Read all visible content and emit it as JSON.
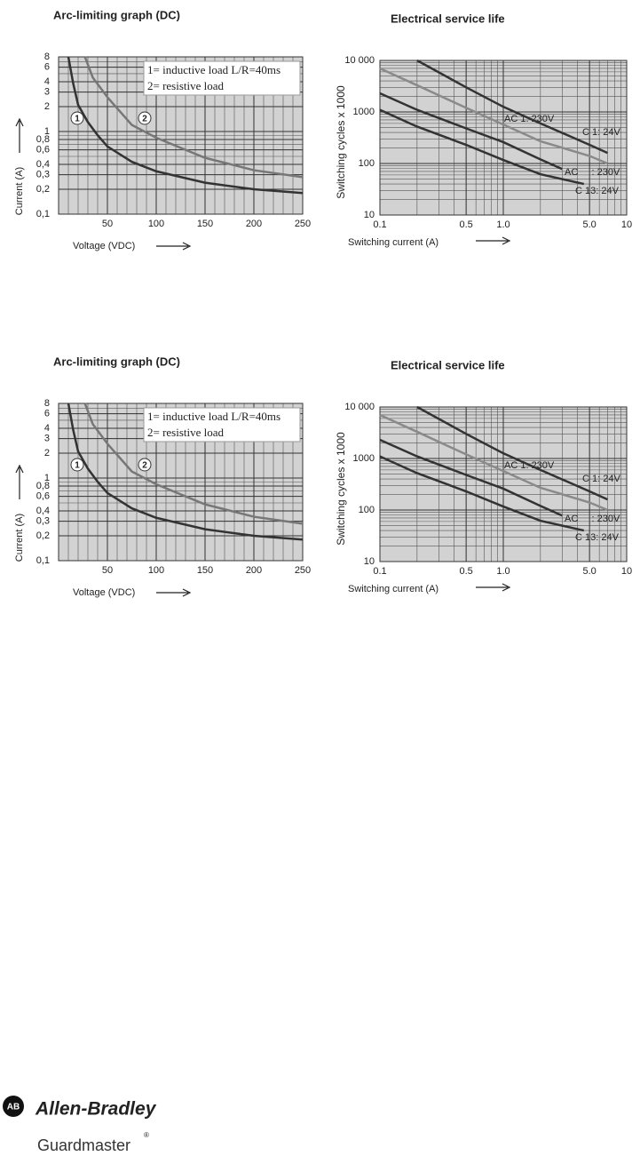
{
  "chart_data": [
    {
      "type": "line",
      "title": "Arc-limiting graph (DC)",
      "xlabel": "Voltage (VDC)",
      "ylabel": "Current (A)",
      "xscale": "linear",
      "yscale": "log",
      "xlim": [
        0,
        250
      ],
      "ylim": [
        0.1,
        8
      ],
      "xticks": [
        50,
        100,
        150,
        200,
        250
      ],
      "yticks": [
        {
          "value": 0.1,
          "label": "0,1"
        },
        {
          "value": 0.2,
          "label": "0,2"
        },
        {
          "value": 0.3,
          "label": "0,3"
        },
        {
          "value": 0.4,
          "label": "0,4"
        },
        {
          "value": 0.6,
          "label": "0,6"
        },
        {
          "value": 0.8,
          "label": "0,8"
        },
        1,
        2,
        3,
        4,
        6,
        8
      ],
      "grid": true,
      "background": "#d2d2d2",
      "annotations": [
        "1= inductive load L/R=40ms",
        "2= resistive load"
      ],
      "series": [
        {
          "name": "1",
          "color": "#333333",
          "x": [
            10,
            15,
            20,
            30,
            40,
            50,
            75,
            100,
            150,
            200,
            250
          ],
          "values": [
            8,
            3.8,
            2.1,
            1.3,
            0.9,
            0.66,
            0.43,
            0.33,
            0.24,
            0.2,
            0.18
          ]
        },
        {
          "name": "2",
          "color": "#777777",
          "x": [
            27,
            35,
            50,
            75,
            100,
            150,
            200,
            250
          ],
          "values": [
            8,
            4.5,
            2.6,
            1.2,
            0.84,
            0.48,
            0.34,
            0.28
          ]
        }
      ]
    },
    {
      "type": "line",
      "title": "Electrical service life",
      "xlabel": "Switching current (A)",
      "ylabel": "Switching cycles x 1000",
      "xscale": "log",
      "yscale": "log",
      "xlim": [
        0.1,
        10
      ],
      "ylim": [
        10,
        10000
      ],
      "xticks": [
        0.1,
        0.5,
        {
          "value": 1,
          "label": "1.0"
        },
        {
          "value": 5,
          "label": "5.0"
        },
        10
      ],
      "yticks": [
        10,
        100,
        1000,
        {
          "value": 10000,
          "label": "10 000"
        }
      ],
      "grid": true,
      "background": "#d2d2d2",
      "series": [
        {
          "name": "AC 1: 230V",
          "color": "#8a8a8a",
          "x": [
            0.1,
            0.2,
            0.5,
            1,
            2,
            5,
            7
          ],
          "values": [
            7000,
            3300,
            1200,
            570,
            270,
            140,
            100
          ]
        },
        {
          "name": "C 1: 24V",
          "color": "#333333",
          "x": [
            0.2,
            0.5,
            1,
            2,
            5,
            7
          ],
          "values": [
            10000,
            3000,
            1260,
            600,
            230,
            160
          ]
        },
        {
          "name": "AC     : 230V",
          "color": "#333333",
          "x": [
            0.1,
            0.2,
            0.5,
            1,
            2,
            3
          ],
          "values": [
            2300,
            1100,
            480,
            260,
            120,
            78
          ]
        },
        {
          "name": "C 13: 24V",
          "color": "#333333",
          "x": [
            0.1,
            0.2,
            0.5,
            1,
            2,
            4.5
          ],
          "values": [
            1100,
            520,
            230,
            117,
            62,
            40
          ]
        }
      ]
    },
    {
      "type": "line",
      "title": "Arc-limiting graph (DC)",
      "xlabel": "Voltage (VDC)",
      "ylabel": "Current (A)",
      "xscale": "linear",
      "yscale": "log",
      "xlim": [
        0,
        250
      ],
      "ylim": [
        0.1,
        8
      ],
      "xticks": [
        50,
        100,
        150,
        200,
        250
      ],
      "yticks": [
        {
          "value": 0.1,
          "label": "0,1"
        },
        {
          "value": 0.2,
          "label": "0,2"
        },
        {
          "value": 0.3,
          "label": "0,3"
        },
        {
          "value": 0.4,
          "label": "0,4"
        },
        {
          "value": 0.6,
          "label": "0,6"
        },
        {
          "value": 0.8,
          "label": "0,8"
        },
        1,
        2,
        3,
        4,
        6,
        8
      ],
      "grid": true,
      "background": "#d2d2d2",
      "annotations": [
        "1= inductive load L/R=40ms",
        "2= resistive load"
      ],
      "series": [
        {
          "name": "1",
          "color": "#333333",
          "x": [
            10,
            15,
            20,
            30,
            40,
            50,
            75,
            100,
            150,
            200,
            250
          ],
          "values": [
            8,
            3.8,
            2.1,
            1.3,
            0.9,
            0.66,
            0.43,
            0.33,
            0.24,
            0.2,
            0.18
          ]
        },
        {
          "name": "2",
          "color": "#777777",
          "x": [
            27,
            35,
            50,
            75,
            100,
            150,
            200,
            250
          ],
          "values": [
            8,
            4.5,
            2.6,
            1.2,
            0.84,
            0.48,
            0.34,
            0.28
          ]
        }
      ]
    },
    {
      "type": "line",
      "title": "Electrical service life",
      "xlabel": "Switching current (A)",
      "ylabel": "Switching cycles x 1000",
      "xscale": "log",
      "yscale": "log",
      "xlim": [
        0.1,
        10
      ],
      "ylim": [
        10,
        10000
      ],
      "xticks": [
        0.1,
        0.5,
        {
          "value": 1,
          "label": "1.0"
        },
        {
          "value": 5,
          "label": "5.0"
        },
        10
      ],
      "yticks": [
        10,
        100,
        1000,
        {
          "value": 10000,
          "label": "10 000"
        }
      ],
      "grid": true,
      "background": "#d2d2d2",
      "series": [
        {
          "name": "AC 1: 230V",
          "color": "#8a8a8a",
          "x": [
            0.1,
            0.2,
            0.5,
            1,
            2,
            5,
            7
          ],
          "values": [
            7000,
            3300,
            1200,
            570,
            270,
            140,
            100
          ]
        },
        {
          "name": "C 1: 24V",
          "color": "#333333",
          "x": [
            0.2,
            0.5,
            1,
            2,
            5,
            7
          ],
          "values": [
            10000,
            3000,
            1260,
            600,
            230,
            160
          ]
        },
        {
          "name": "AC     : 230V",
          "color": "#333333",
          "x": [
            0.1,
            0.2,
            0.5,
            1,
            2,
            3
          ],
          "values": [
            2300,
            1100,
            480,
            260,
            120,
            78
          ]
        },
        {
          "name": "C 13: 24V",
          "color": "#333333",
          "x": [
            0.1,
            0.2,
            0.5,
            1,
            2,
            4.5
          ],
          "values": [
            1100,
            520,
            230,
            117,
            62,
            40
          ]
        }
      ]
    }
  ],
  "footer": {
    "logo": "AB",
    "brand": "Allen-Bradley",
    "product": "Guardmaster",
    "registered": "®"
  }
}
